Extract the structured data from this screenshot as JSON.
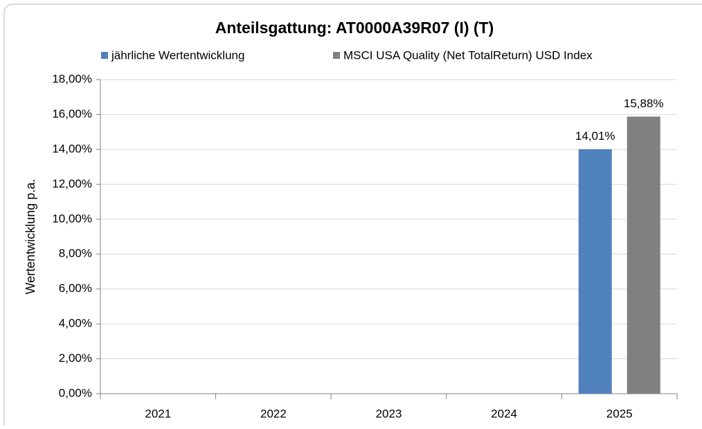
{
  "chart_data": {
    "type": "bar",
    "title": "Anteilsgattung: AT0000A39R07 (I) (T)",
    "y_label": "Wertentwicklung p.a.",
    "categories": [
      "2021",
      "2022",
      "2023",
      "2024",
      "2025"
    ],
    "series": [
      {
        "name": "jährliche Wertentwicklung",
        "color": "#4f81bd",
        "values": [
          null,
          null,
          null,
          null,
          14.01
        ],
        "value_labels": [
          null,
          null,
          null,
          null,
          "14,01%"
        ]
      },
      {
        "name": "MSCI USA Quality (Net TotalReturn) USD Index",
        "color": "#808080",
        "values": [
          null,
          null,
          null,
          null,
          15.88
        ],
        "value_labels": [
          null,
          null,
          null,
          null,
          "15,88%"
        ]
      }
    ],
    "ylim": [
      0,
      18
    ],
    "yticks": [
      {
        "value": 0,
        "label": "0,00%"
      },
      {
        "value": 2,
        "label": "2,00%"
      },
      {
        "value": 4,
        "label": "4,00%"
      },
      {
        "value": 6,
        "label": "6,00%"
      },
      {
        "value": 8,
        "label": "8,00%"
      },
      {
        "value": 10,
        "label": "10,00%"
      },
      {
        "value": 12,
        "label": "12,00%"
      },
      {
        "value": 14,
        "label": "14,00%"
      },
      {
        "value": 16,
        "label": "16,00%"
      },
      {
        "value": 18,
        "label": "18,00%"
      }
    ],
    "grid": true,
    "legend": "top"
  }
}
